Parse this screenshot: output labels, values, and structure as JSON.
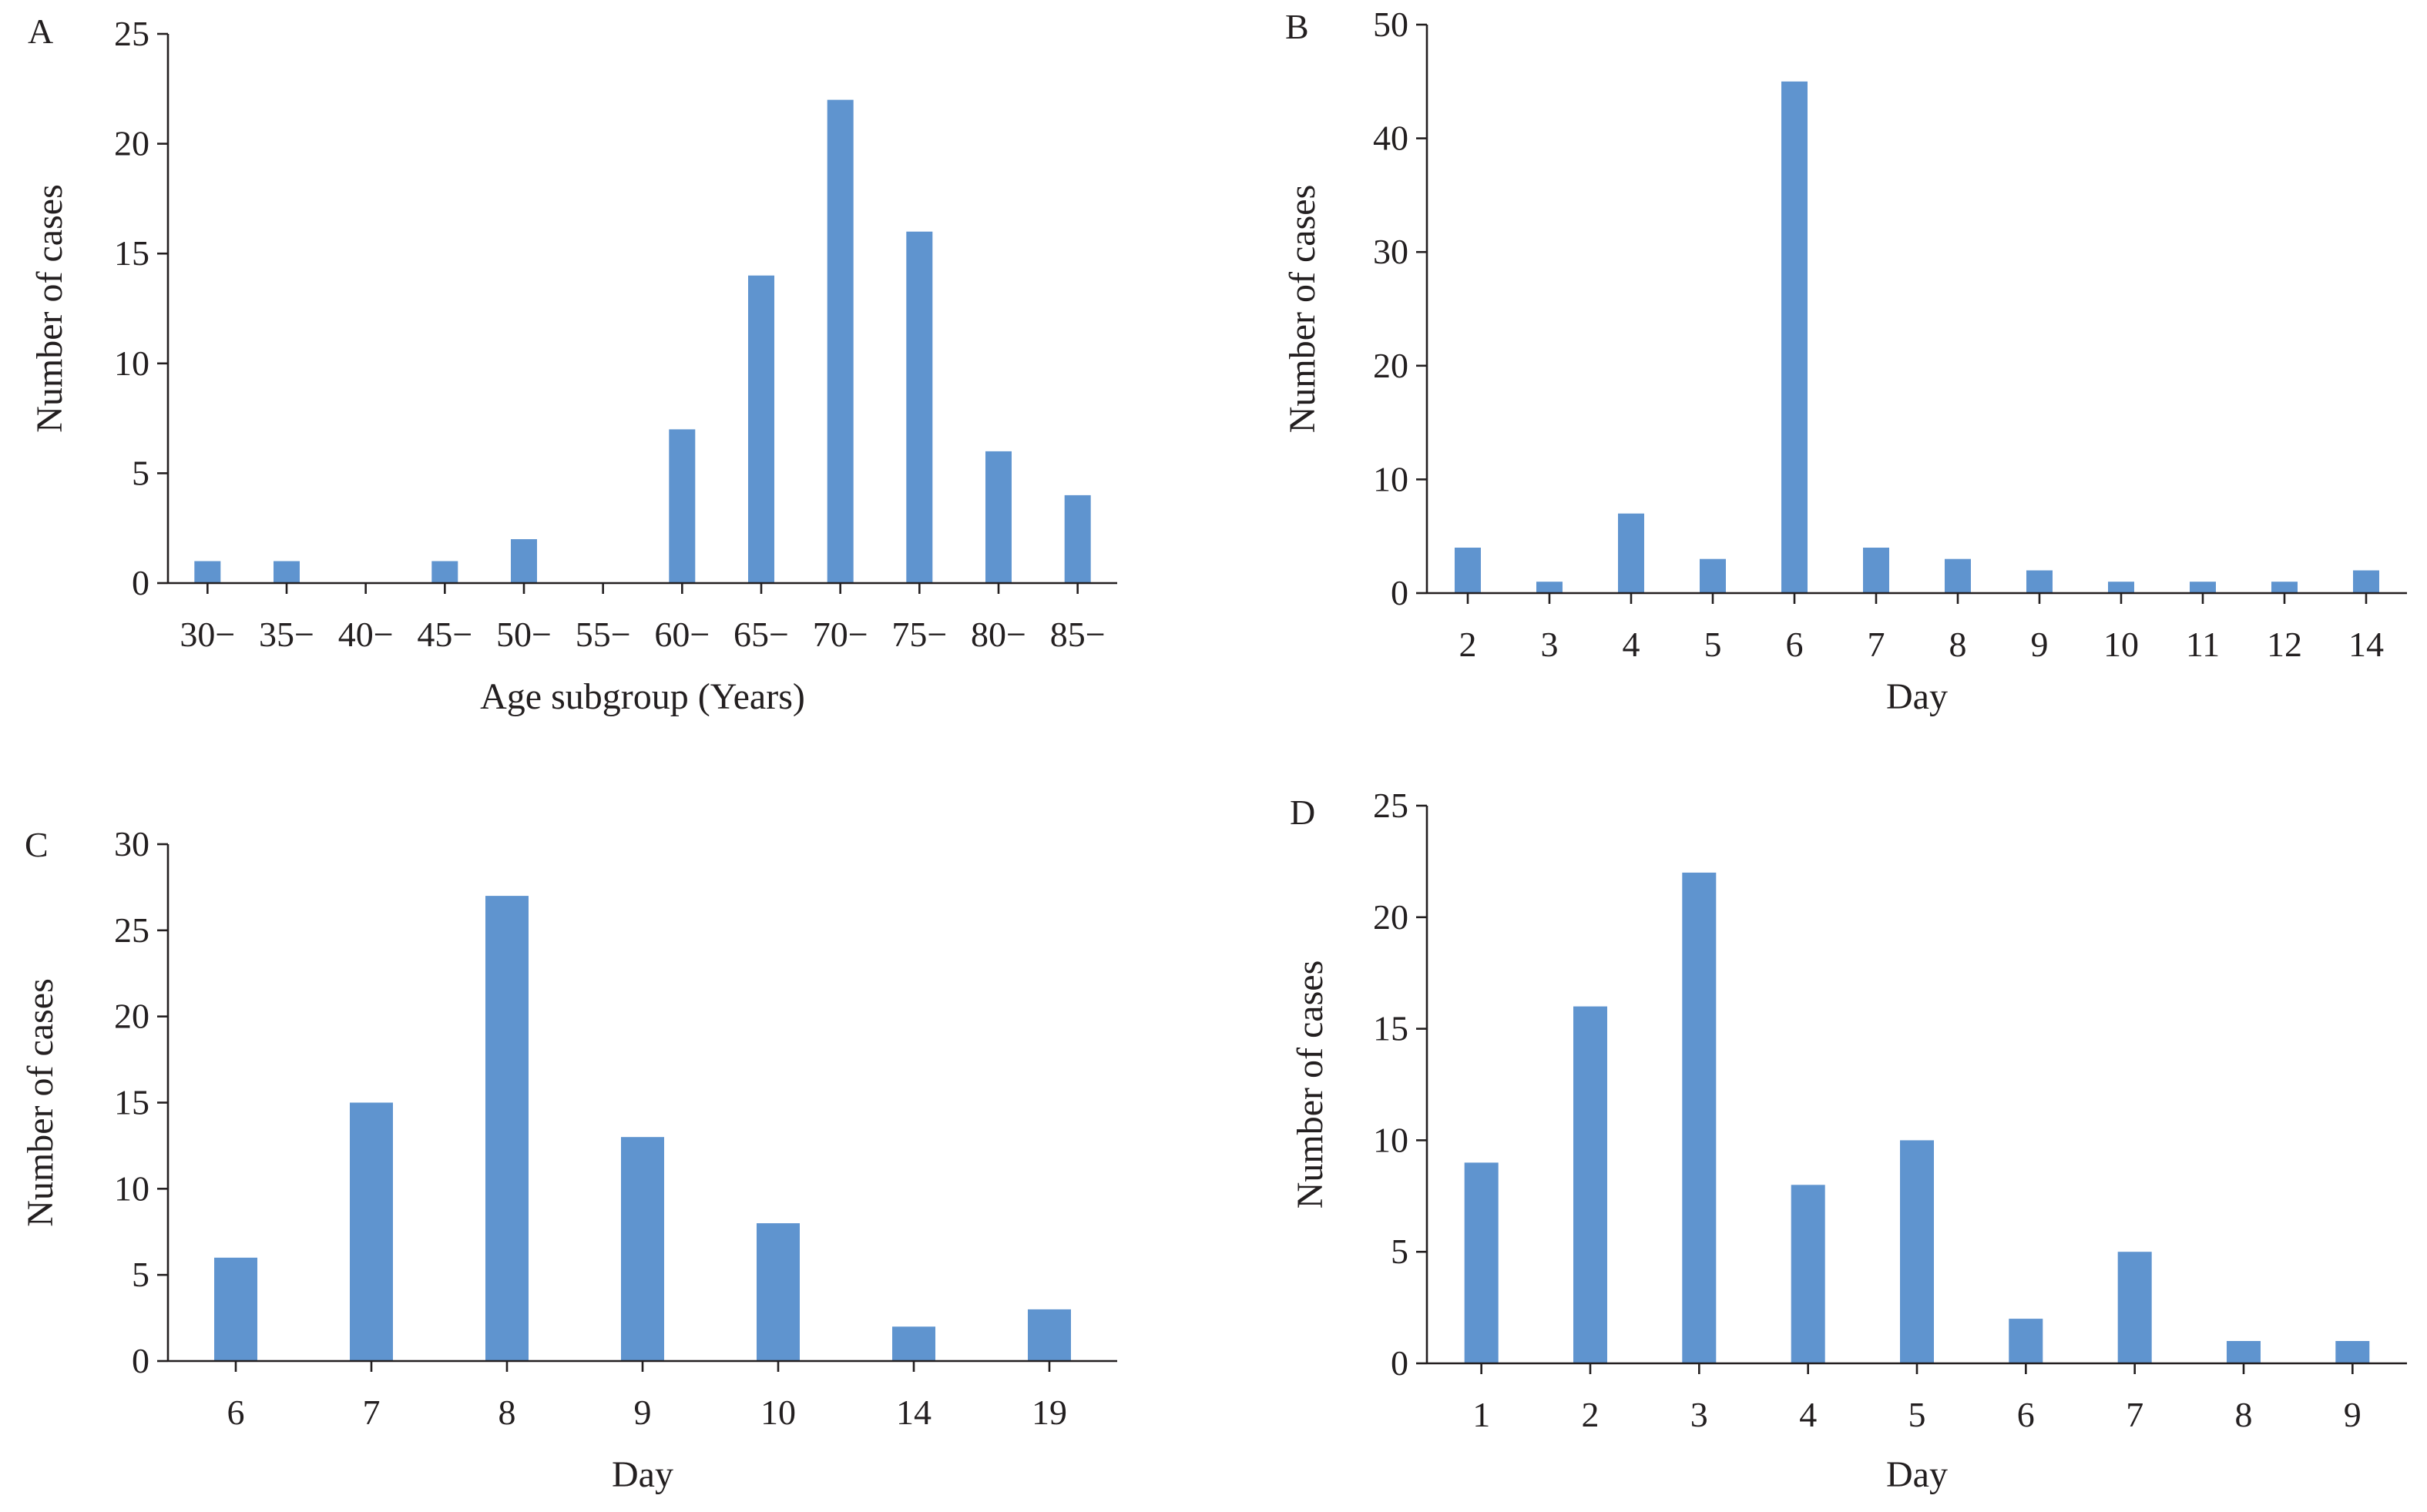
{
  "colors": {
    "bar": "#5f94cf",
    "axis": "#231f20",
    "text": "#231f20"
  },
  "chart_data": [
    {
      "panel": "A",
      "type": "bar",
      "categories": [
        "30−",
        "35−",
        "40−",
        "45−",
        "50−",
        "55−",
        "60−",
        "65−",
        "70−",
        "75−",
        "80−",
        "85−"
      ],
      "values": [
        1,
        1,
        0,
        1,
        2,
        0,
        7,
        14,
        22,
        16,
        6,
        4
      ],
      "yticks": [
        0,
        5,
        10,
        15,
        20,
        25
      ],
      "ylim": [
        0,
        25
      ],
      "xlabel": "Age subgroup (Years)",
      "ylabel": "Number of cases",
      "grid": false,
      "legend": "none"
    },
    {
      "panel": "B",
      "type": "bar",
      "categories": [
        "2",
        "3",
        "4",
        "5",
        "6",
        "7",
        "8",
        "9",
        "10",
        "11",
        "12",
        "14"
      ],
      "values": [
        4,
        1,
        7,
        3,
        45,
        4,
        3,
        2,
        1,
        1,
        1,
        2
      ],
      "yticks": [
        0,
        10,
        20,
        30,
        40,
        50
      ],
      "ylim": [
        0,
        50
      ],
      "xlabel": "Day",
      "ylabel": "Number of cases",
      "grid": false,
      "legend": "none"
    },
    {
      "panel": "C",
      "type": "bar",
      "categories": [
        "6",
        "7",
        "8",
        "9",
        "10",
        "14",
        "19"
      ],
      "values": [
        6,
        15,
        27,
        13,
        8,
        2,
        3
      ],
      "yticks": [
        0,
        5,
        10,
        15,
        20,
        25,
        30
      ],
      "ylim": [
        0,
        30
      ],
      "xlabel": "Day",
      "ylabel": "Number of cases",
      "grid": false,
      "legend": "none"
    },
    {
      "panel": "D",
      "type": "bar",
      "categories": [
        "1",
        "2",
        "3",
        "4",
        "5",
        "6",
        "7",
        "8",
        "9"
      ],
      "values": [
        9,
        16,
        22,
        8,
        10,
        2,
        5,
        1,
        1
      ],
      "yticks": [
        0,
        5,
        10,
        15,
        20,
        25
      ],
      "ylim": [
        0,
        25
      ],
      "xlabel": "Day",
      "ylabel": "Number of cases",
      "grid": false,
      "legend": "none"
    }
  ]
}
